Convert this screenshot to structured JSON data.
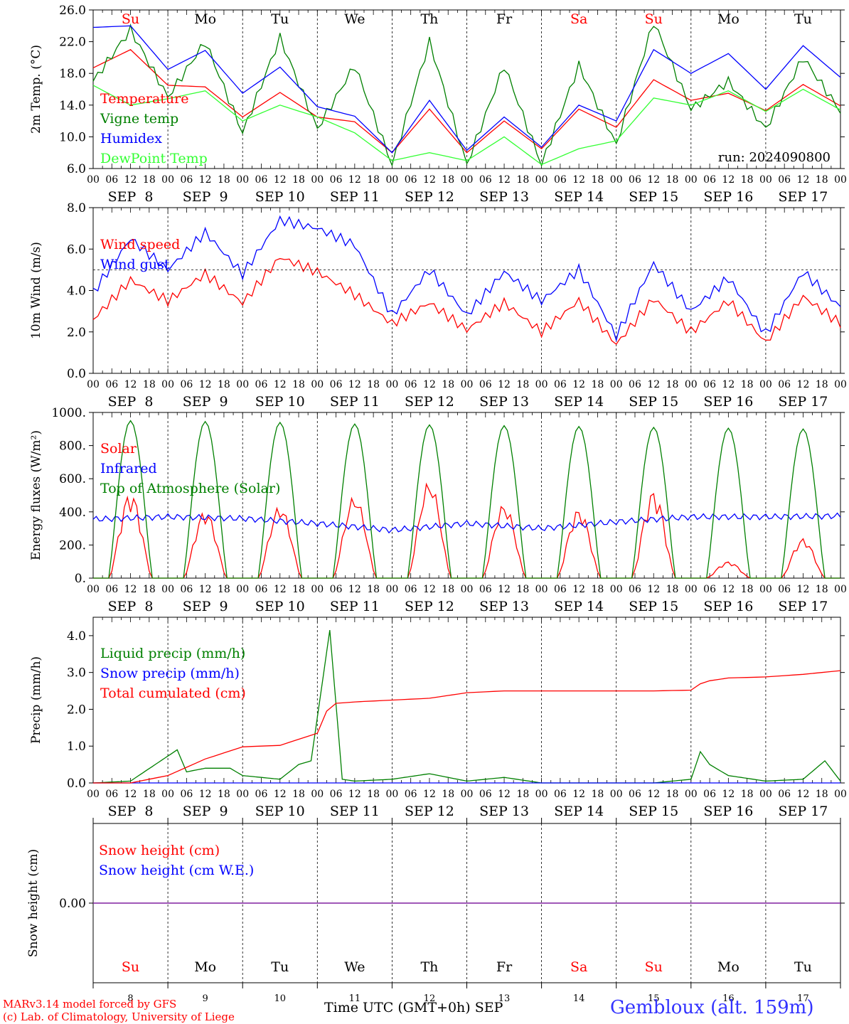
{
  "chart_data": [
    {
      "type": "line",
      "ylabel": "2m Temp. (°C)",
      "ylim": [
        6.0,
        26.0
      ],
      "yticks": [
        "6.0",
        "10.0",
        "14.0",
        "18.0",
        "22.0",
        "26.0"
      ],
      "run_label": "run: 2024090800",
      "series": [
        {
          "name": "Temperature",
          "color": "#ff0000",
          "x": [
            0,
            12,
            24,
            36,
            48,
            60,
            72,
            84,
            96,
            108,
            120,
            132,
            144,
            156,
            168,
            180,
            192,
            204,
            216,
            228,
            240
          ],
          "values": [
            18.7,
            21.0,
            16.5,
            16.3,
            12.5,
            15.6,
            12.5,
            11.9,
            8.0,
            13.5,
            8.0,
            12.0,
            8.5,
            13.5,
            11.2,
            17.2,
            14.6,
            15.5,
            13.3,
            16.6,
            13.9
          ]
        },
        {
          "name": "Vigne temp",
          "color": "#008000",
          "x": [
            0,
            12,
            24,
            36,
            48,
            60,
            72,
            84,
            96,
            108,
            120,
            132,
            144,
            156,
            168,
            180,
            192,
            204,
            216,
            228,
            240
          ],
          "values": [
            17.0,
            23.5,
            15.0,
            22.0,
            10.5,
            22.5,
            11.0,
            19.0,
            6.5,
            22.0,
            6.5,
            19.0,
            6.5,
            19.0,
            9.0,
            24.5,
            13.5,
            17.0,
            11.0,
            20.0,
            13.2
          ]
        },
        {
          "name": "Humidex",
          "color": "#0000ff",
          "x": [
            0,
            12,
            24,
            36,
            48,
            60,
            72,
            84,
            96,
            108,
            120,
            132,
            144,
            156,
            168,
            180,
            192,
            204,
            216,
            228,
            240
          ],
          "values": [
            23.8,
            24.0,
            18.5,
            20.9,
            15.5,
            18.8,
            13.8,
            12.6,
            8.0,
            14.6,
            8.3,
            12.5,
            8.7,
            14.0,
            12.0,
            21.0,
            18.0,
            20.5,
            16.0,
            21.5,
            17.5
          ]
        },
        {
          "name": "DewPoint Temp",
          "color": "#33ff33",
          "x": [
            0,
            12,
            24,
            36,
            48,
            60,
            72,
            84,
            96,
            108,
            120,
            132,
            144,
            156,
            168,
            180,
            192,
            204,
            216,
            228,
            240
          ],
          "values": [
            16.5,
            14.0,
            14.8,
            15.8,
            12.0,
            14.0,
            12.5,
            10.5,
            7.0,
            8.0,
            7.0,
            10.0,
            6.5,
            8.5,
            9.5,
            14.9,
            14.0,
            15.8,
            13.2,
            16.0,
            13.4
          ]
        }
      ]
    },
    {
      "type": "line",
      "ylabel": "10m Wind (m/s)",
      "ylim": [
        0.0,
        8.0
      ],
      "yticks": [
        "0.0",
        "2.0",
        "4.0",
        "6.0",
        "8.0"
      ],
      "reference_line": 5.0,
      "series": [
        {
          "name": "Wind speed",
          "color": "#ff0000",
          "x": [
            0,
            12,
            24,
            36,
            48,
            60,
            72,
            84,
            96,
            108,
            120,
            132,
            144,
            156,
            168,
            180,
            192,
            204,
            216,
            228,
            240
          ],
          "values": [
            2.6,
            4.5,
            3.5,
            4.8,
            3.4,
            5.6,
            4.9,
            3.8,
            2.4,
            3.4,
            2.1,
            3.4,
            2.0,
            3.5,
            1.4,
            3.6,
            2.0,
            3.5,
            1.5,
            3.7,
            2.4
          ]
        },
        {
          "name": "Wind gust",
          "color": "#0000ff",
          "x": [
            0,
            12,
            24,
            36,
            48,
            60,
            72,
            84,
            96,
            108,
            120,
            132,
            144,
            156,
            168,
            180,
            192,
            204,
            216,
            228,
            240
          ],
          "values": [
            3.9,
            6.5,
            5.0,
            6.8,
            4.8,
            7.4,
            7.0,
            6.2,
            2.8,
            5.0,
            2.8,
            4.9,
            3.5,
            5.0,
            1.8,
            5.3,
            3.0,
            4.6,
            1.9,
            4.9,
            3.2
          ]
        }
      ]
    },
    {
      "type": "line",
      "ylabel": "Energy fluxes (W/m²)",
      "ylim": [
        0,
        1000
      ],
      "yticks": [
        "0.",
        "200.",
        "400.",
        "600.",
        "800.",
        "1000."
      ],
      "series": [
        {
          "name": "Solar",
          "color": "#ff0000",
          "peaks": [
            520,
            410,
            440,
            500,
            590,
            450,
            420,
            530,
            100,
            240
          ]
        },
        {
          "name": "Infrared",
          "color": "#0000ff",
          "x": [
            0,
            24,
            48,
            72,
            96,
            120,
            144,
            168,
            192,
            216,
            240
          ],
          "values": [
            355,
            370,
            360,
            330,
            290,
            330,
            300,
            340,
            370,
            370,
            375
          ]
        },
        {
          "name": "Top of Atmosphere (Solar)",
          "color": "#008000",
          "peaks": [
            950,
            945,
            940,
            930,
            925,
            920,
            915,
            910,
            905,
            900
          ]
        }
      ]
    },
    {
      "type": "line",
      "ylabel": "Precip (mm/h)",
      "ylim": [
        0.0,
        4.5
      ],
      "yticks": [
        "0.0",
        "1.0",
        "2.0",
        "3.0",
        "4.0"
      ],
      "series": [
        {
          "name": "Liquid precip (mm/h)",
          "color": "#008000",
          "x": [
            0,
            12,
            27,
            30,
            36,
            44,
            48,
            60,
            66,
            70,
            76,
            80,
            84,
            96,
            108,
            120,
            132,
            144,
            156,
            168,
            180,
            192,
            195,
            198,
            204,
            216,
            228,
            235,
            240
          ],
          "values": [
            0,
            0.05,
            0.9,
            0.3,
            0.4,
            0.4,
            0.2,
            0.1,
            0.5,
            0.6,
            4.15,
            0.1,
            0.05,
            0.1,
            0.25,
            0.05,
            0.15,
            0,
            0,
            0,
            0,
            0.1,
            0.85,
            0.5,
            0.2,
            0.05,
            0.1,
            0.6,
            0.05
          ]
        },
        {
          "name": "Snow precip (mm/h)",
          "color": "#0000ff",
          "x": [
            0,
            240
          ],
          "values": [
            0,
            0
          ]
        },
        {
          "name": "Total cumulated (cm)",
          "color": "#ff0000",
          "x": [
            0,
            12,
            24,
            36,
            48,
            60,
            72,
            76,
            84,
            96,
            108,
            120,
            132,
            144,
            156,
            168,
            180,
            192,
            196,
            204,
            216,
            228,
            240
          ],
          "values": [
            0,
            0,
            0.2,
            0.65,
            0.98,
            1.02,
            1.35,
            2.15,
            2.2,
            2.25,
            2.3,
            2.45,
            2.5,
            2.5,
            2.5,
            2.5,
            2.5,
            2.52,
            2.75,
            2.85,
            2.88,
            2.95,
            3.05
          ]
        }
      ]
    },
    {
      "type": "line",
      "ylabel": "Snow height (cm)",
      "yticks": [
        "0.00"
      ],
      "series": [
        {
          "name": "Snow height (cm)",
          "color": "#ff0000",
          "x": [
            0,
            240
          ],
          "values": [
            0,
            0
          ]
        },
        {
          "name": "Snow height (cm W.E.)",
          "color": "#0000ff",
          "x": [
            0,
            240
          ],
          "values": [
            0,
            0
          ]
        }
      ]
    }
  ],
  "axis": {
    "weekday_labels": [
      "Su",
      "Mo",
      "Tu",
      "We",
      "Th",
      "Fr",
      "Sa",
      "Su",
      "Mo",
      "Tu"
    ],
    "weekday_colors": [
      "#ff0000",
      "#000000",
      "#000000",
      "#000000",
      "#000000",
      "#000000",
      "#ff0000",
      "#ff0000",
      "#000000",
      "#000000"
    ],
    "date_labels": [
      "SEP  8",
      "SEP  9",
      "SEP 10",
      "SEP 11",
      "SEP 12",
      "SEP 13",
      "SEP 14",
      "SEP 15",
      "SEP 16",
      "SEP 17"
    ],
    "hour_labels": [
      "00",
      "06",
      "12",
      "18"
    ],
    "end_hour_label": "00",
    "day_numbers": [
      "8",
      "9",
      "10",
      "11",
      "12",
      "13",
      "14",
      "15",
      "16",
      "17"
    ],
    "month_label": "SEP",
    "xtitle": "Time UTC (GMT+0h)"
  },
  "footer": {
    "credit_line1": "MARv3.14 model forced by GFS",
    "credit_line2": "(c) Lab. of Climatology, University of Liege",
    "station": "Gembloux (alt. 159m)"
  }
}
